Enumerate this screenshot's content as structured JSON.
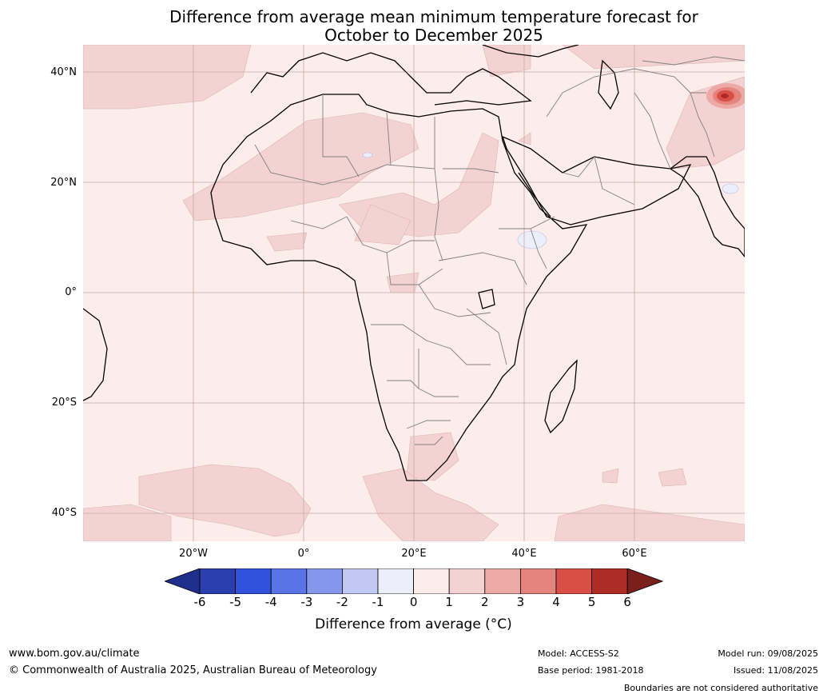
{
  "title_line1": "Difference from average mean minimum temperature forecast for",
  "title_line2": "October to December 2025",
  "lat_labels": [
    "40°N",
    "20°N",
    "0°",
    "20°S",
    "40°S"
  ],
  "lon_labels": [
    "20°W",
    "0°",
    "20°E",
    "40°E",
    "60°E"
  ],
  "colorbar": {
    "ticks": [
      "-6",
      "-5",
      "-4",
      "-3",
      "-2",
      "-1",
      "0",
      "1",
      "2",
      "3",
      "4",
      "5",
      "6"
    ],
    "colors": [
      "#1f2f8c",
      "#2a3fae",
      "#3352dc",
      "#5a73e6",
      "#8597ea",
      "#c0c8f3",
      "#eceef9",
      "#fcecea",
      "#f4d2d2",
      "#eda9a6",
      "#e5847e",
      "#da4f45",
      "#ad2d26",
      "#7a1f1a"
    ],
    "label": "Difference from average (°C)"
  },
  "footer": {
    "url": "www.bom.gov.au/climate",
    "copyright": "© Commonwealth of Australia 2025, Australian Bureau of Meteorology",
    "model": "Model: ACCESS-S2",
    "base_period": "Base period: 1981-2018",
    "model_run": "Model run: 09/08/2025",
    "issued": "Issued: 11/08/2025",
    "disclaimer": "Boundaries are not considered authoritative"
  }
}
